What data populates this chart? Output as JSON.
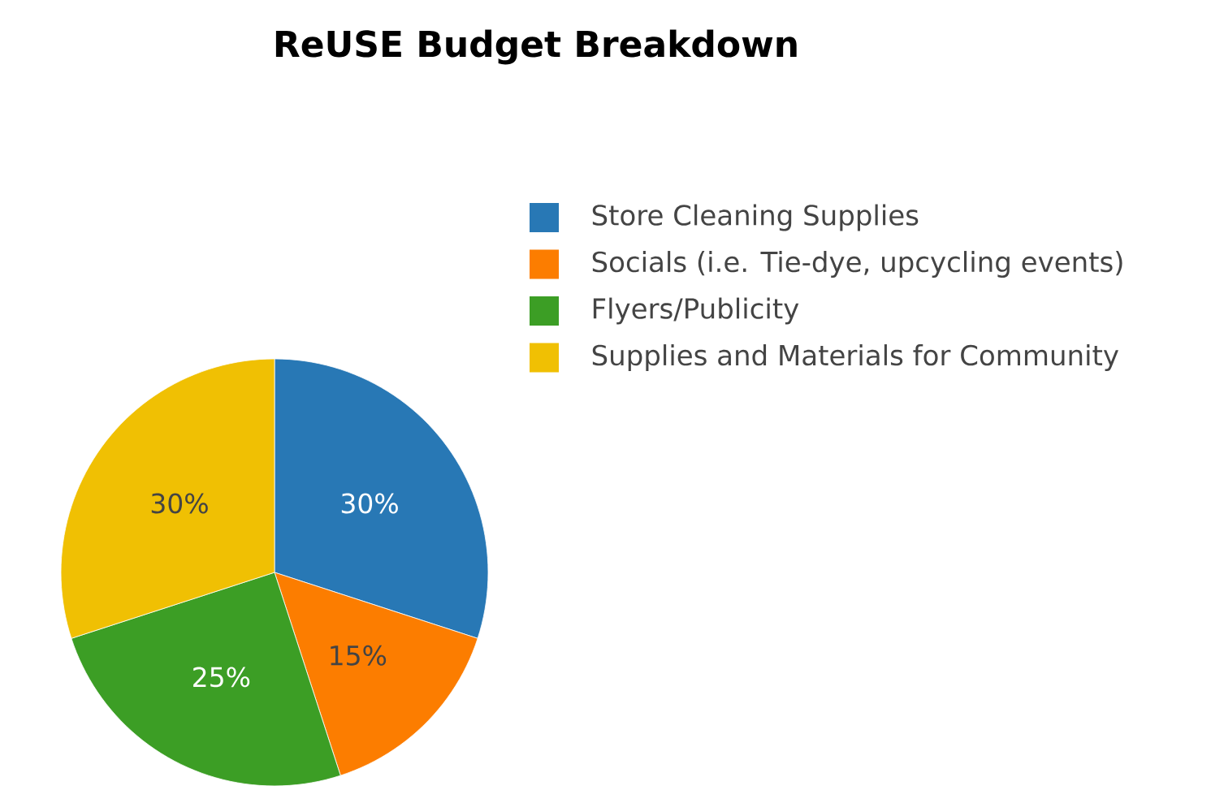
{
  "chart_data": {
    "type": "pie",
    "title": "ReUSE Budget Breakdown",
    "categories": [
      "Store Cleaning Supplies",
      "Socials (i.e. Tie-dye, upcycling events)",
      "Flyers/Publicity",
      "Supplies and Materials for Community"
    ],
    "values": [
      30,
      15,
      25,
      30
    ],
    "value_labels": [
      "30%",
      "15%",
      "25%",
      "30%"
    ],
    "colors": [
      "#2878b5",
      "#fc7d00",
      "#3c9e25",
      "#f0c003"
    ],
    "legend": "top right"
  }
}
